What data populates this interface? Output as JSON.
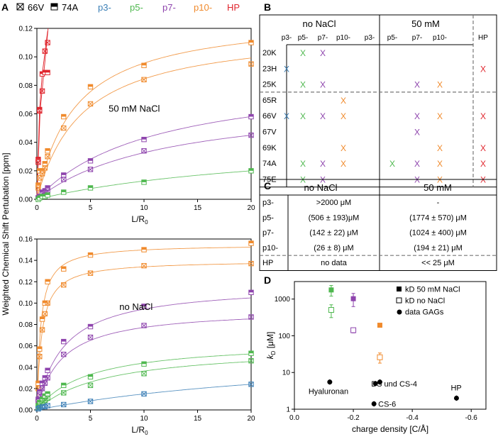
{
  "panel_labels": {
    "a": "A",
    "b": "B",
    "c": "C",
    "d": "D"
  },
  "legend": [
    {
      "text": "66V",
      "color": "#000000",
      "marker": "boxed-x"
    },
    {
      "text": "74A",
      "color": "#000000",
      "marker": "half-square"
    },
    {
      "text": "p3-",
      "color": "#3b7fb6"
    },
    {
      "text": "p5-",
      "color": "#4fb84f"
    },
    {
      "text": "p7-",
      "color": "#8e44ad"
    },
    {
      "text": "p10-",
      "color": "#f08a2c"
    },
    {
      "text": "HP",
      "color": "#e0262e"
    }
  ],
  "colors": {
    "p3": "#3b7fb6",
    "p5": "#4fb84f",
    "p7": "#8e44ad",
    "p10": "#f08a2c",
    "HP": "#e0262e",
    "grey": "#777777"
  },
  "shared_ylabel": "Weighted Chemical Shift Pertubation [ppm]",
  "chart_data": [
    {
      "id": "top",
      "type": "scatter",
      "title": "",
      "annotation": "50 mM NaCl",
      "xlabel_main": "L/R",
      "xlabel_sub": "0",
      "xlim": [
        0,
        20
      ],
      "ylim": [
        0,
        0.12
      ],
      "xticks": [
        0,
        5,
        10,
        15,
        20
      ],
      "yticks": [
        0,
        0.02,
        0.04,
        0.06,
        0.08,
        0.1,
        0.12
      ],
      "ytick_labels": [
        "0.00",
        "0.02",
        "0.04",
        "0.06",
        "0.08",
        "0.10",
        "0.12"
      ],
      "x": [
        0.125,
        0.25,
        0.5,
        0.75,
        1,
        2.5,
        5,
        10,
        20
      ],
      "series": [
        {
          "name": "p10- 74A",
          "color": "#f08a2c",
          "marker": "half",
          "values": [
            0.01,
            0.02,
            0.02,
            0.025,
            0.034,
            0.058,
            0.079,
            0.094,
            0.11
          ],
          "fit": [
            0.13,
            3.6
          ]
        },
        {
          "name": "p10- 66V",
          "color": "#f08a2c",
          "marker": "boxx",
          "values": [
            0.008,
            0.015,
            0.018,
            0.022,
            0.03,
            0.05,
            0.067,
            0.084,
            0.095
          ],
          "fit": [
            0.12,
            4.2
          ]
        },
        {
          "name": "p7- 74A",
          "color": "#8e44ad",
          "marker": "half",
          "values": [
            0.001,
            0.002,
            0.005,
            0.006,
            0.008,
            0.017,
            0.027,
            0.042,
            0.058
          ],
          "fit": [
            0.09,
            11
          ]
        },
        {
          "name": "p7- 66V",
          "color": "#8e44ad",
          "marker": "boxx",
          "values": [
            0.001,
            0.002,
            0.004,
            0.005,
            0.006,
            0.014,
            0.021,
            0.034,
            0.045
          ],
          "fit": [
            0.072,
            12
          ]
        },
        {
          "name": "p5- 74A",
          "color": "#4fb84f",
          "marker": "half",
          "values": [
            0.0,
            0.001,
            0.002,
            0.002,
            0.003,
            0.005,
            0.008,
            0.012,
            0.02
          ],
          "fit": [
            0.045,
            25
          ]
        },
        {
          "name": "HP 74A",
          "color": "#e0262e",
          "marker": "half",
          "x": [
            0.125,
            0.25,
            0.5,
            0.75,
            1
          ],
          "values": [
            0.028,
            0.063,
            0.088,
            0.089,
            0.089
          ]
        },
        {
          "name": "HP 66V",
          "color": "#e0262e",
          "marker": "boxx",
          "x": [
            0.125,
            0.25,
            0.5,
            0.75,
            1
          ],
          "values": [
            0.026,
            0.062,
            0.076,
            0.104,
            0.11
          ]
        }
      ],
      "hp_lines": [
        [
          0,
          0,
          0.25,
          0.063,
          0.5,
          0.088,
          1,
          0.118
        ],
        [
          0,
          0,
          0.3,
          0.062,
          0.6,
          0.085,
          1.05,
          0.12
        ]
      ]
    },
    {
      "id": "bottom",
      "type": "scatter",
      "title": "",
      "annotation": "no NaCl",
      "xlabel_main": "L/R",
      "xlabel_sub": "0",
      "xlim": [
        0,
        20
      ],
      "ylim": [
        0,
        0.16
      ],
      "xticks": [
        0,
        5,
        10,
        15,
        20
      ],
      "yticks": [
        0,
        0.02,
        0.04,
        0.06,
        0.08,
        0.1,
        0.12,
        0.14,
        0.16
      ],
      "ytick_labels": [
        "0.00",
        "0.02",
        "0.04",
        "0.06",
        "0.08",
        "0.10",
        "0.12",
        "0.14",
        "0.16"
      ],
      "x": [
        0.125,
        0.25,
        0.5,
        0.75,
        1,
        2.5,
        5,
        10,
        20
      ],
      "series": [
        {
          "name": "p10- 74A",
          "color": "#f08a2c",
          "marker": "half",
          "values": [
            0.025,
            0.057,
            0.085,
            0.1,
            0.12,
            0.132,
            0.145,
            0.15,
            0.156
          ],
          "fit": [
            0.155,
            0.35
          ]
        },
        {
          "name": "p10- 66V",
          "color": "#f08a2c",
          "marker": "boxx",
          "values": [
            0.02,
            0.05,
            0.075,
            0.09,
            0.1,
            0.117,
            0.128,
            0.135,
            0.137
          ],
          "fit": [
            0.14,
            0.45
          ]
        },
        {
          "name": "p7- 74A",
          "color": "#8e44ad",
          "marker": "half",
          "values": [
            0.01,
            0.017,
            0.025,
            0.03,
            0.037,
            0.064,
            0.078,
            0.097,
            0.11
          ],
          "fit": [
            0.118,
            2.5
          ]
        },
        {
          "name": "p7- 66V",
          "color": "#8e44ad",
          "marker": "boxx",
          "values": [
            0.008,
            0.014,
            0.02,
            0.025,
            0.03,
            0.052,
            0.068,
            0.079,
            0.087
          ],
          "fit": [
            0.095,
            2.3
          ]
        },
        {
          "name": "p5- 74A",
          "color": "#4fb84f",
          "marker": "half",
          "values": [
            0.004,
            0.007,
            0.01,
            0.013,
            0.015,
            0.023,
            0.031,
            0.043,
            0.053
          ],
          "fit": [
            0.065,
            4.8
          ]
        },
        {
          "name": "p5- 66V",
          "color": "#4fb84f",
          "marker": "boxx",
          "values": [
            0.002,
            0.004,
            0.007,
            0.009,
            0.011,
            0.016,
            0.023,
            0.034,
            0.046
          ],
          "fit": [
            0.06,
            6.5
          ]
        },
        {
          "name": "p3- 74A",
          "color": "#3b7fb6",
          "marker": "boxx",
          "values": [
            0.001,
            0.002,
            0.003,
            0.003,
            0.004,
            0.005,
            0.008,
            0.015,
            0.024
          ],
          "fit": [
            0.06,
            30
          ]
        }
      ]
    },
    {
      "id": "D",
      "type": "scatter",
      "title": "",
      "xlabel": "charge density [C/Å]",
      "ylabel_main": "k",
      "ylabel_sub": "D",
      "ylabel_unit": " [μM]",
      "xlim": [
        0,
        -0.65
      ],
      "ylim_log": [
        1,
        3000
      ],
      "xticks": [
        0,
        -0.2,
        -0.4,
        -0.6
      ],
      "xtick_labels": [
        "0.0",
        "-0.2",
        "-0.4",
        "-0.6"
      ],
      "yticks": [
        1,
        10,
        100,
        1000
      ],
      "ytick_labels": [
        "1",
        "10",
        "100",
        "1000"
      ],
      "legend": [
        "kD 50 mM NaCl",
        "kD no NaCl",
        "data GAGs"
      ],
      "kd_50mM": [
        {
          "x": -0.125,
          "y": 1774,
          "err": 570,
          "color": "#4fb84f"
        },
        {
          "x": -0.2,
          "y": 1024,
          "err": 400,
          "color": "#8e44ad"
        },
        {
          "x": -0.29,
          "y": 194,
          "err": 21,
          "color": "#f08a2c"
        }
      ],
      "kd_noNaCl": [
        {
          "x": -0.125,
          "y": 506,
          "err": 193,
          "color": "#4fb84f"
        },
        {
          "x": -0.2,
          "y": 142,
          "err": 22,
          "color": "#8e44ad"
        },
        {
          "x": -0.29,
          "y": 26,
          "err": 8,
          "color": "#f08a2c"
        }
      ],
      "gags": [
        {
          "x": -0.12,
          "y": 5.5,
          "label": "Hyaluronan"
        },
        {
          "x": -0.275,
          "y": 5,
          "label": "DS und CS-4"
        },
        {
          "x": -0.29,
          "y": 5.5,
          "label": ""
        },
        {
          "x": -0.27,
          "y": 1.4,
          "label": "CS-6"
        },
        {
          "x": -0.55,
          "y": 2,
          "label": "HP"
        }
      ]
    }
  ],
  "tableB": {
    "group1": "no NaCl",
    "group2": "50 mM",
    "cols": [
      "p3-",
      "p5-",
      "p7-",
      "p10-",
      "p3-",
      "p5-",
      "p7-",
      "p10-",
      "HP"
    ],
    "mark": "X",
    "rows": [
      {
        "label": "20K",
        "cells": [
          "",
          "p5",
          "p7",
          "",
          "",
          "",
          "",
          "",
          ""
        ]
      },
      {
        "label": "23H",
        "cells": [
          "p3",
          "",
          "",
          "",
          "",
          "",
          "",
          "",
          "HP"
        ]
      },
      {
        "label": "25K",
        "cells": [
          "",
          "p5",
          "p7",
          "",
          "",
          "",
          "p7",
          "p10",
          ""
        ]
      },
      {
        "label": "65R",
        "cells": [
          "",
          "",
          "",
          "p10",
          "",
          "",
          "",
          "",
          ""
        ]
      },
      {
        "label": "66V",
        "cells": [
          "p3",
          "p5",
          "p7",
          "p10",
          "",
          "",
          "p7",
          "p10",
          "HP"
        ]
      },
      {
        "label": "67V",
        "cells": [
          "",
          "",
          "",
          "",
          "",
          "",
          "p7",
          "",
          ""
        ]
      },
      {
        "label": "69K",
        "cells": [
          "",
          "",
          "",
          "p10",
          "",
          "",
          "",
          "p10",
          "HP"
        ]
      },
      {
        "label": "74A",
        "cells": [
          "",
          "p5",
          "p7",
          "p10",
          "",
          "p5",
          "p7",
          "p10",
          "HP"
        ]
      },
      {
        "label": "75E",
        "cells": [
          "",
          "p5",
          "p7",
          "",
          "",
          "",
          "p7",
          "p10",
          "HP"
        ]
      }
    ]
  },
  "tableC": {
    "head": [
      "no NaCl",
      "50 mM"
    ],
    "rows": [
      {
        "label": "p3-",
        "a": ">2000 μM",
        "b": "-"
      },
      {
        "label": "p5-",
        "a": "(506 ± 193)μM",
        "b": "(1774 ± 570) μM"
      },
      {
        "label": "p7-",
        "a": "(142 ± 22) μM",
        "b": "(1024 ± 400) μM"
      },
      {
        "label": "p10-",
        "a": "(26 ± 8) μM",
        "b": "(194 ± 21) μM"
      },
      {
        "label": "HP",
        "a": "no data",
        "b": "<< 25 μM"
      }
    ]
  }
}
